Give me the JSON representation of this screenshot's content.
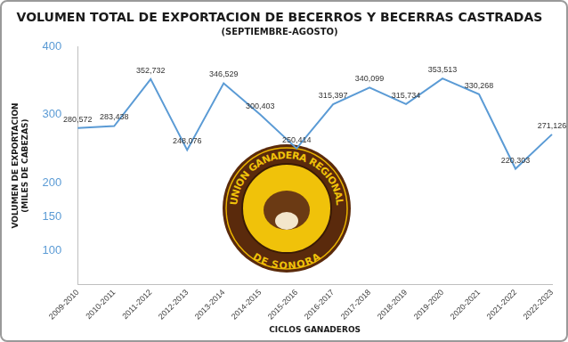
{
  "chart_data": {
    "type": "line",
    "title": "VOLUMEN TOTAL DE EXPORTACION DE BECERROS Y BECERRAS CASTRADAS",
    "subtitle": "(SEPTIEMBRE-AGOSTO)",
    "xlabel": "CICLOS GANADEROS",
    "ylabel": [
      "VOLUMEN DE EXPORTACION",
      "(MILES DE CABEZAS)"
    ],
    "annotations": [
      "UNION GANADERA REGIONAL",
      "DE SONORA"
    ],
    "categories": [
      "2009-2010",
      "2010-2011",
      "2011-2012",
      "2012-2013",
      "2013-2014",
      "2014-2015",
      "2015-2016",
      "2016-2017",
      "2017-2018",
      "2018-2019",
      "2019-2020",
      "2020-2021",
      "2021-2022",
      "2022-2023"
    ],
    "values": [
      280.572,
      283.438,
      352.732,
      248.076,
      346.529,
      300.403,
      250.414,
      315.397,
      340.099,
      315.734,
      353.513,
      330.268,
      220.303,
      271.126
    ],
    "value_labels": [
      "280,572",
      "283,438",
      "352,732",
      "248,076",
      "346,529",
      "300,403",
      "250,414",
      "315,397",
      "340,099",
      "315,734",
      "353,513",
      "330,268",
      "220,303",
      "271,126"
    ],
    "data_labels": true,
    "color": "#5b9bd5",
    "ylim": [
      50,
      400
    ],
    "yticks": [
      100,
      150,
      200,
      300,
      400
    ],
    "grid": false
  }
}
